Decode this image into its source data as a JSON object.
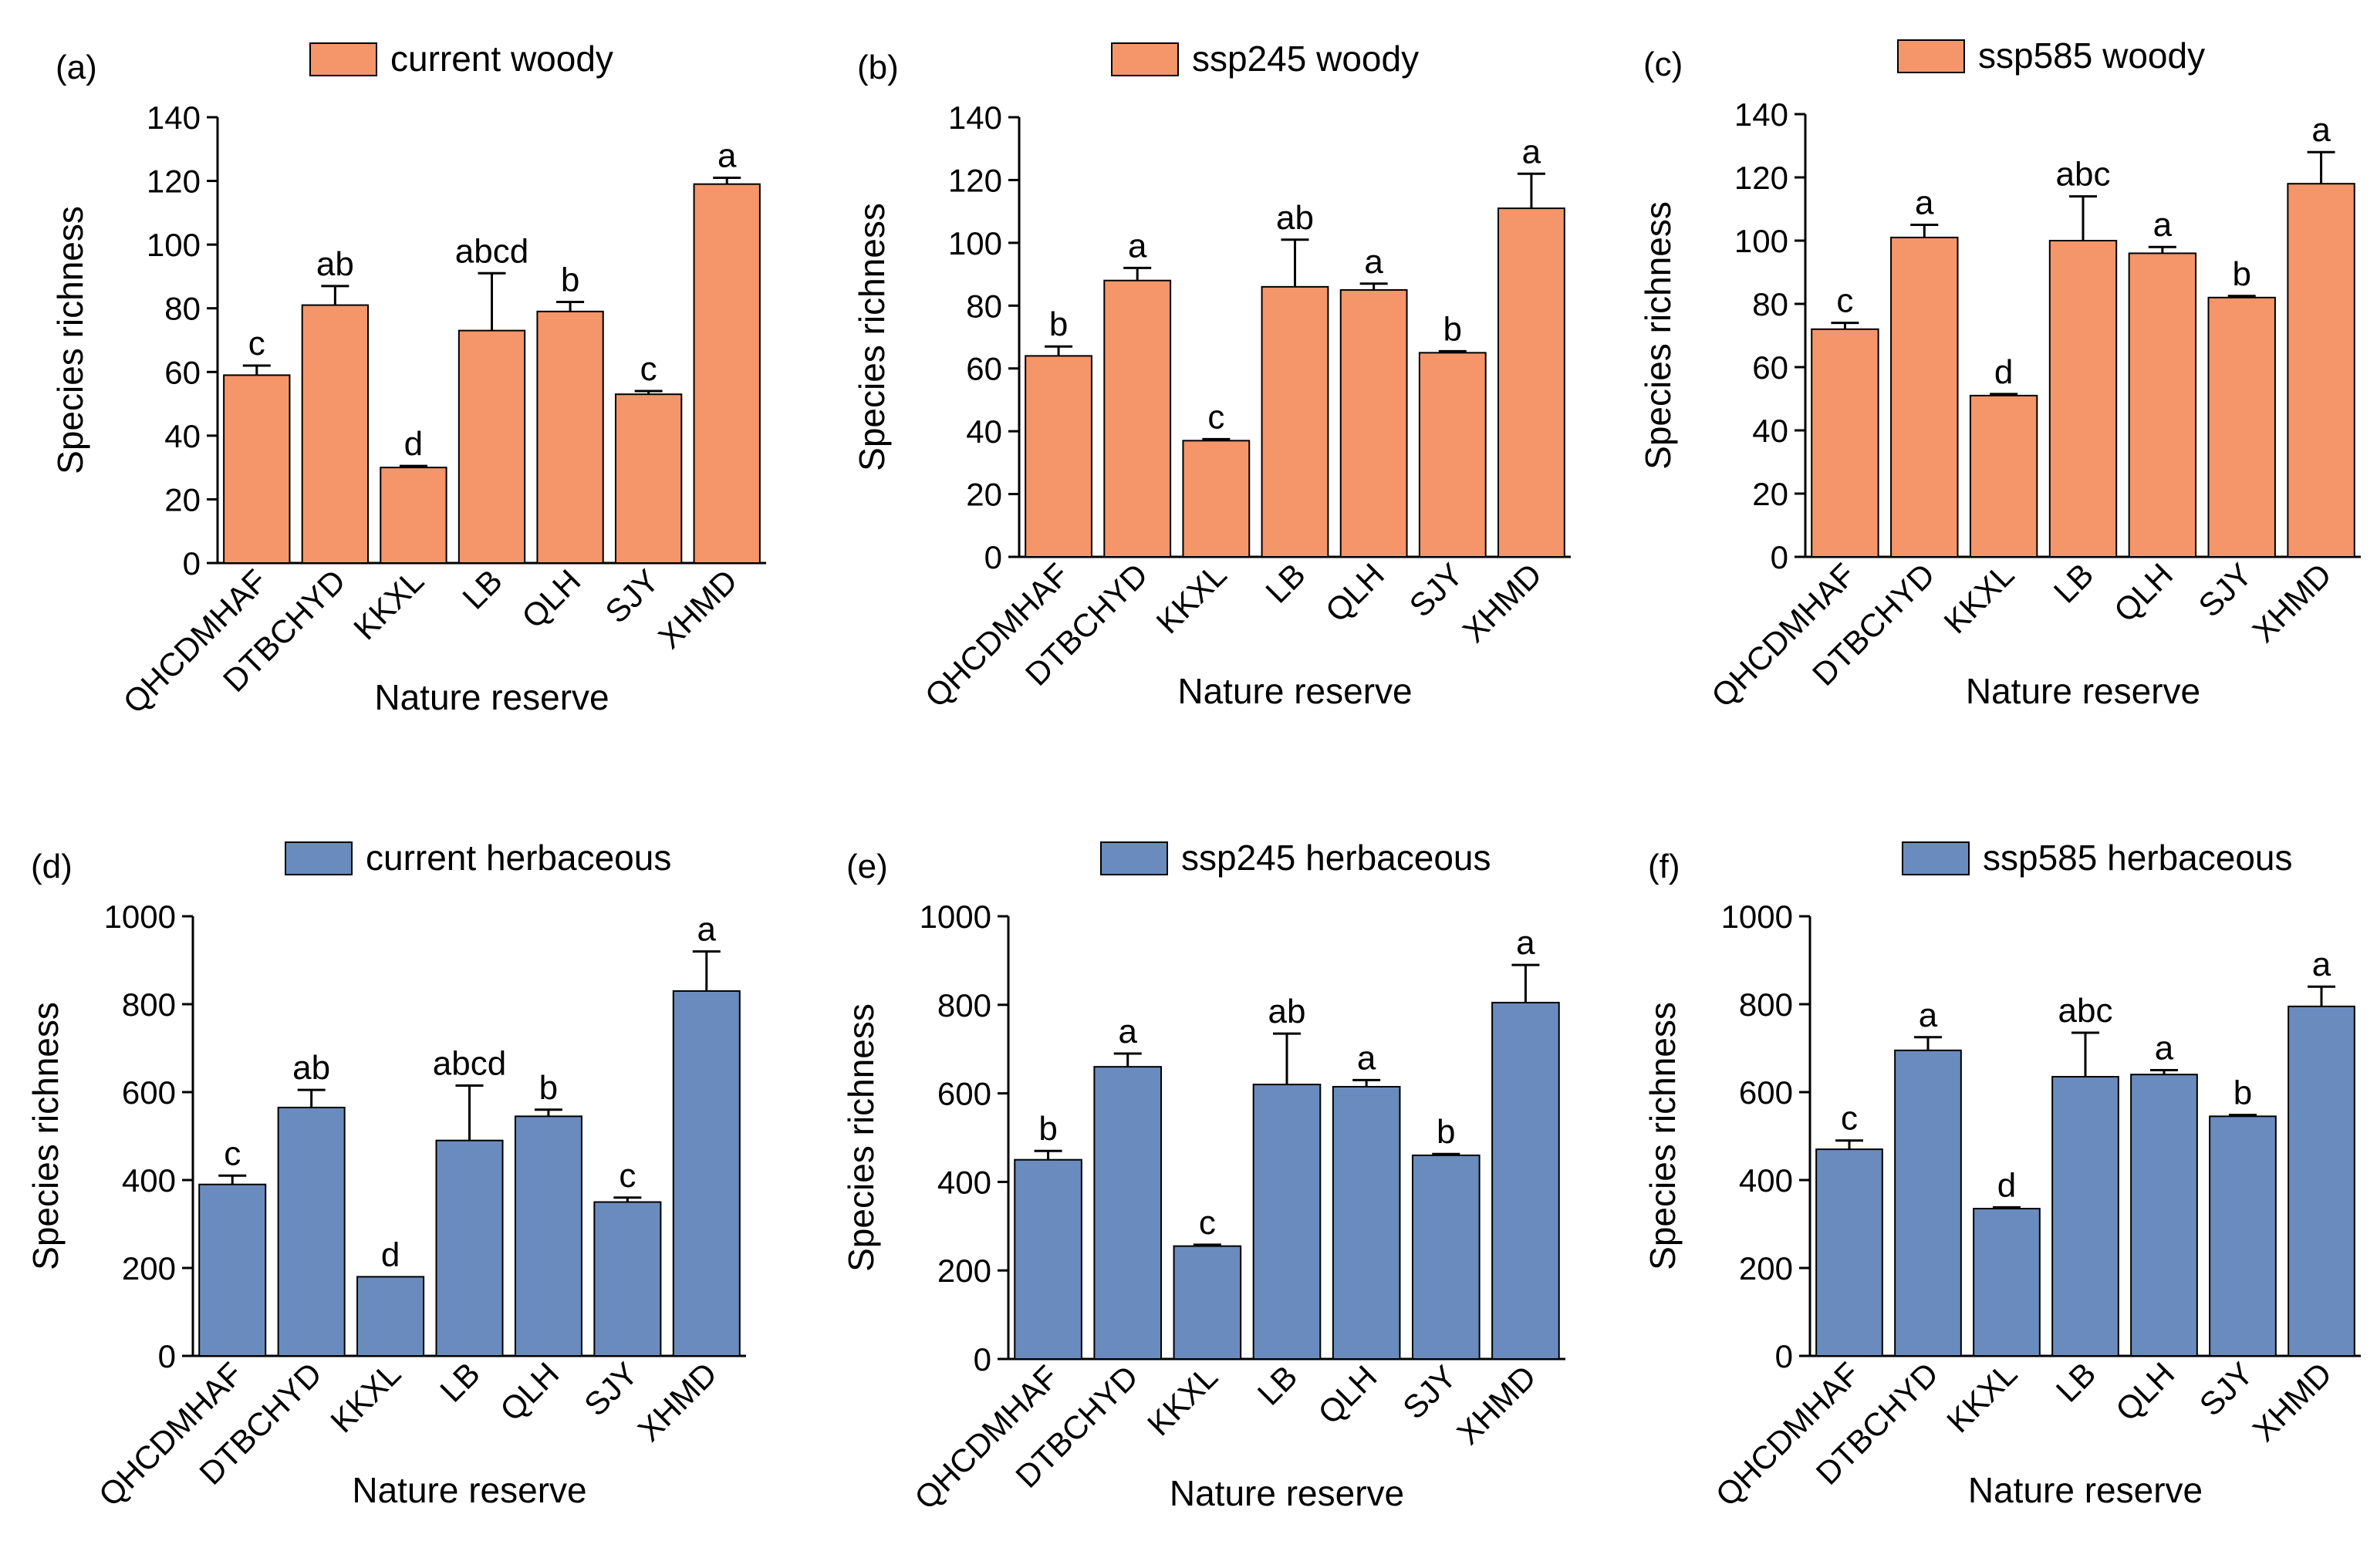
{
  "chart_data": [
    {
      "type": "bar",
      "panel_label": "(a)",
      "legend": "current woody",
      "categories": [
        "QHCDMHAF",
        "DTBCHYD",
        "KKXL",
        "LB",
        "QLH",
        "SJY",
        "XHMD"
      ],
      "values": [
        59,
        81,
        30,
        73,
        79,
        53,
        119
      ],
      "errors": [
        3,
        6,
        0.5,
        18,
        3,
        1,
        2
      ],
      "letters": [
        "c",
        "ab",
        "d",
        "abcd",
        "b",
        "c",
        "a"
      ],
      "xlabel": "Nature reserve",
      "ylabel": "Species richness",
      "ylim": [
        0,
        140
      ],
      "yticks": [
        "0",
        "20",
        "40",
        "60",
        "80",
        "100",
        "120",
        "140"
      ],
      "color": "#F4956A"
    },
    {
      "type": "bar",
      "panel_label": "(b)",
      "legend": "ssp245 woody",
      "categories": [
        "QHCDMHAF",
        "DTBCHYD",
        "KKXL",
        "LB",
        "QLH",
        "SJY",
        "XHMD"
      ],
      "values": [
        64,
        88,
        37,
        86,
        85,
        65,
        111
      ],
      "errors": [
        3,
        4,
        0.5,
        15,
        2,
        0.5,
        11
      ],
      "letters": [
        "b",
        "a",
        "c",
        "ab",
        "a",
        "b",
        "a"
      ],
      "xlabel": "Nature reserve",
      "ylabel": "Species richness",
      "ylim": [
        0,
        140
      ],
      "yticks": [
        "0",
        "20",
        "40",
        "60",
        "80",
        "100",
        "120",
        "140"
      ],
      "color": "#F4956A"
    },
    {
      "type": "bar",
      "panel_label": "(c)",
      "legend": "ssp585 woody",
      "categories": [
        "QHCDMHAF",
        "DTBCHYD",
        "KKXL",
        "LB",
        "QLH",
        "SJY",
        "XHMD"
      ],
      "values": [
        72,
        101,
        51,
        100,
        96,
        82,
        118
      ],
      "errors": [
        2,
        4,
        0.5,
        14,
        2,
        0.5,
        10
      ],
      "letters": [
        "c",
        "a",
        "d",
        "abc",
        "a",
        "b",
        "a"
      ],
      "xlabel": "Nature reserve",
      "ylabel": "Species richness",
      "ylim": [
        0,
        140
      ],
      "yticks": [
        "0",
        "20",
        "40",
        "60",
        "80",
        "100",
        "120",
        "140"
      ],
      "color": "#F4956A"
    },
    {
      "type": "bar",
      "panel_label": "(d)",
      "legend": "current herbaceous",
      "categories": [
        "QHCDMHAF",
        "DTBCHYD",
        "KKXL",
        "LB",
        "QLH",
        "SJY",
        "XHMD"
      ],
      "values": [
        390,
        565,
        180,
        490,
        545,
        350,
        830
      ],
      "errors": [
        20,
        40,
        0,
        125,
        15,
        10,
        90
      ],
      "letters": [
        "c",
        "ab",
        "d",
        "abcd",
        "b",
        "c",
        "a"
      ],
      "xlabel": "Nature reserve",
      "ylabel": "Species richness",
      "ylim": [
        0,
        1000
      ],
      "yticks": [
        "0",
        "200",
        "400",
        "600",
        "800",
        "1000"
      ],
      "color": "#6A8BBD"
    },
    {
      "type": "bar",
      "panel_label": "(e)",
      "legend": "ssp245 herbaceous",
      "categories": [
        "QHCDMHAF",
        "DTBCHYD",
        "KKXL",
        "LB",
        "QLH",
        "SJY",
        "XHMD"
      ],
      "values": [
        450,
        660,
        255,
        620,
        615,
        460,
        805
      ],
      "errors": [
        20,
        30,
        3,
        115,
        15,
        3,
        85
      ],
      "letters": [
        "b",
        "a",
        "c",
        "ab",
        "a",
        "b",
        "a"
      ],
      "xlabel": "Nature reserve",
      "ylabel": "Species richness",
      "ylim": [
        0,
        1000
      ],
      "yticks": [
        "0",
        "200",
        "400",
        "600",
        "800",
        "1000"
      ],
      "color": "#6A8BBD"
    },
    {
      "type": "bar",
      "panel_label": "(f)",
      "legend": "ssp585 herbaceous",
      "categories": [
        "QHCDMHAF",
        "DTBCHYD",
        "KKXL",
        "LB",
        "QLH",
        "SJY",
        "XHMD"
      ],
      "values": [
        470,
        695,
        335,
        635,
        640,
        545,
        795
      ],
      "errors": [
        20,
        30,
        3,
        100,
        10,
        3,
        45
      ],
      "letters": [
        "c",
        "a",
        "d",
        "abc",
        "a",
        "b",
        "a"
      ],
      "xlabel": "Nature reserve",
      "ylabel": "Species richness",
      "ylim": [
        0,
        1000
      ],
      "yticks": [
        "0",
        "200",
        "400",
        "600",
        "800",
        "1000"
      ],
      "color": "#6A8BBD"
    }
  ]
}
